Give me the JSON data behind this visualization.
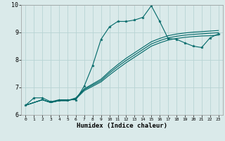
{
  "xlabel": "Humidex (Indice chaleur)",
  "xlim": [
    -0.5,
    23.5
  ],
  "ylim": [
    6,
    10
  ],
  "yticks": [
    6,
    7,
    8,
    9,
    10
  ],
  "xticks": [
    0,
    1,
    2,
    3,
    4,
    5,
    6,
    7,
    8,
    9,
    10,
    11,
    12,
    13,
    14,
    15,
    16,
    17,
    18,
    19,
    20,
    21,
    22,
    23
  ],
  "bg_color": "#daeaea",
  "grid_color": "#b8d4d4",
  "line_color": "#006868",
  "line1_x": [
    0,
    1,
    2,
    3,
    4,
    5,
    6,
    7,
    8,
    9,
    10,
    11,
    12,
    13,
    14,
    15,
    16,
    17,
    18,
    19,
    20,
    21,
    22,
    23
  ],
  "line1_y": [
    6.35,
    6.62,
    6.62,
    6.48,
    6.55,
    6.55,
    6.55,
    7.05,
    7.8,
    8.75,
    9.2,
    9.4,
    9.4,
    9.45,
    9.55,
    9.97,
    9.4,
    8.78,
    8.75,
    8.62,
    8.5,
    8.45,
    8.8,
    8.95
  ],
  "line2_x": [
    0,
    2,
    3,
    4,
    5,
    6,
    7,
    9,
    10,
    11,
    12,
    13,
    14,
    15,
    16,
    17,
    18,
    19,
    20,
    21,
    22,
    23
  ],
  "line2_y": [
    6.35,
    6.55,
    6.45,
    6.52,
    6.52,
    6.58,
    6.88,
    7.2,
    7.45,
    7.68,
    7.9,
    8.1,
    8.3,
    8.5,
    8.62,
    8.72,
    8.78,
    8.82,
    8.85,
    8.87,
    8.88,
    8.9
  ],
  "line3_x": [
    0,
    2,
    3,
    4,
    5,
    6,
    7,
    9,
    10,
    11,
    12,
    13,
    14,
    15,
    16,
    17,
    18,
    19,
    20,
    21,
    22,
    23
  ],
  "line3_y": [
    6.35,
    6.55,
    6.45,
    6.52,
    6.52,
    6.6,
    6.92,
    7.25,
    7.52,
    7.76,
    7.98,
    8.18,
    8.38,
    8.58,
    8.7,
    8.8,
    8.86,
    8.9,
    8.93,
    8.95,
    8.97,
    8.99
  ],
  "line4_x": [
    0,
    2,
    3,
    4,
    5,
    6,
    7,
    9,
    10,
    11,
    12,
    13,
    14,
    15,
    16,
    17,
    18,
    19,
    20,
    21,
    22,
    23
  ],
  "line4_y": [
    6.35,
    6.55,
    6.45,
    6.52,
    6.52,
    6.62,
    6.95,
    7.3,
    7.58,
    7.83,
    8.06,
    8.26,
    8.46,
    8.66,
    8.78,
    8.88,
    8.94,
    8.98,
    9.01,
    9.03,
    9.05,
    9.07
  ]
}
